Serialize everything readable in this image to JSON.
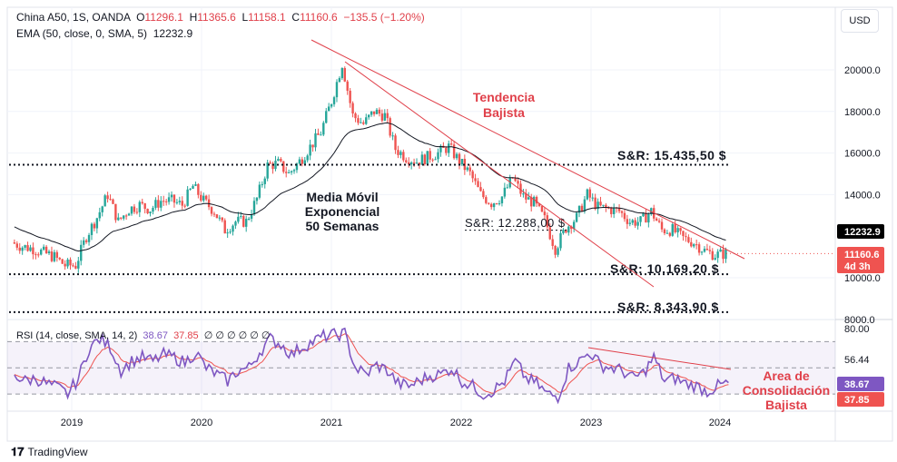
{
  "legend": {
    "symbol": "China A50, 1S, OANDA",
    "o_label": "O",
    "o": "11296.1",
    "h_label": "H",
    "h": "11365.6",
    "l_label": "L",
    "l": "11158.1",
    "c_label": "C",
    "c": "11160.6",
    "change": "−135.5 (−1.20%)",
    "ema": "EMA (50, close, 0, SMA, 5)",
    "ema_value": "12232.9"
  },
  "rsi_legend": {
    "name": "RSI (14, close, SMA, 14, 2)",
    "rsi": "38.67",
    "ma": "37.85",
    "zeros": "∅ ∅ ∅ ∅ ∅ ∅"
  },
  "currency_button": "USD",
  "brand": "TradingView",
  "colors": {
    "up": "#26a69a",
    "down": "#ef5350",
    "ema": "#131722",
    "annot": "#e0404a",
    "rsi": "#7e57c2",
    "rsi_ma": "#ef5350"
  },
  "chart_data": {
    "type": "candlestick",
    "x_ticks": [
      "2019",
      "2020",
      "2021",
      "2022",
      "2023",
      "2024"
    ],
    "y_ticks": [
      "20000.0",
      "18000.0",
      "16000.0",
      "14000.0",
      "10000.0",
      "8000.0"
    ],
    "start": "2018-07",
    "interval": "month",
    "closes": [
      11700,
      11500,
      11400,
      11200,
      11000,
      10600,
      10600,
      12000,
      12900,
      14000,
      12700,
      13300,
      13500,
      13300,
      13700,
      13700,
      13500,
      14400,
      13700,
      13200,
      12300,
      12700,
      12700,
      13800,
      15400,
      15500,
      15000,
      15600,
      16300,
      17000,
      18500,
      20300,
      17800,
      17400,
      18000,
      17800,
      16200,
      15800,
      15600,
      15800,
      16000,
      16300,
      15600,
      15000,
      14000,
      13600,
      13900,
      14800,
      13900,
      13600,
      12800,
      11400,
      12400,
      12900,
      14000,
      13400,
      13300,
      13200,
      12700,
      12700,
      13200,
      12300,
      12300,
      11900,
      11700,
      11300,
      11100,
      11160
    ],
    "ema_last": 12232.9,
    "price_last": 11160.6,
    "countdown": "4d 3h",
    "rsi": [
      45,
      40,
      42,
      38,
      35,
      30,
      42,
      65,
      72,
      66,
      48,
      55,
      58,
      55,
      60,
      58,
      54,
      62,
      50,
      45,
      40,
      48,
      50,
      62,
      72,
      68,
      60,
      66,
      70,
      74,
      75,
      76,
      50,
      45,
      52,
      48,
      38,
      36,
      40,
      44,
      45,
      50,
      40,
      36,
      30,
      33,
      40,
      55,
      42,
      38,
      30,
      28,
      50,
      55,
      62,
      52,
      50,
      48,
      42,
      46,
      58,
      40,
      42,
      38,
      36,
      32,
      36,
      38.67
    ],
    "rsi_ma_last": 37.85,
    "rsi_ticks": [
      "80.00",
      "56.44"
    ],
    "rsi_levels": [
      70,
      50,
      30
    ],
    "sr_levels": [
      {
        "value": 15435.5,
        "label": "S&R: 15.435,50 $"
      },
      {
        "value": 12288,
        "label": "S&R: 12.288,00 $"
      },
      {
        "value": 10169.2,
        "label": "S&R: 10.169,20 $"
      },
      {
        "value": 8343.9,
        "label": "S&R: 8.343,90 $"
      }
    ],
    "annotations": {
      "trend": "Tendencia\nBajista",
      "ema_note": "Media Móvil\nExponencial\n50 Semanas",
      "rsi_note": "Area de\nConsolidación\nBajista"
    }
  }
}
